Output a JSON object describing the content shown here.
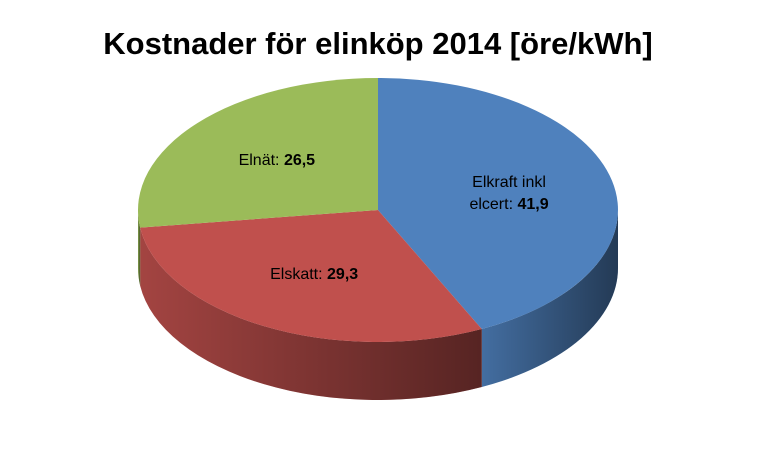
{
  "chart_data": {
    "type": "pie",
    "title": "Kostnader för elinköp 2014 [öre/kWh]",
    "categories": [
      "Elkraft inkl elcert",
      "Elskatt",
      "Elnät"
    ],
    "values": [
      41.9,
      29.3,
      26.5
    ],
    "value_labels": [
      "41,9",
      "29,3",
      "26,5"
    ],
    "separator": ":",
    "colors": [
      "#4f81bd",
      "#c0504d",
      "#9bbb59"
    ]
  }
}
